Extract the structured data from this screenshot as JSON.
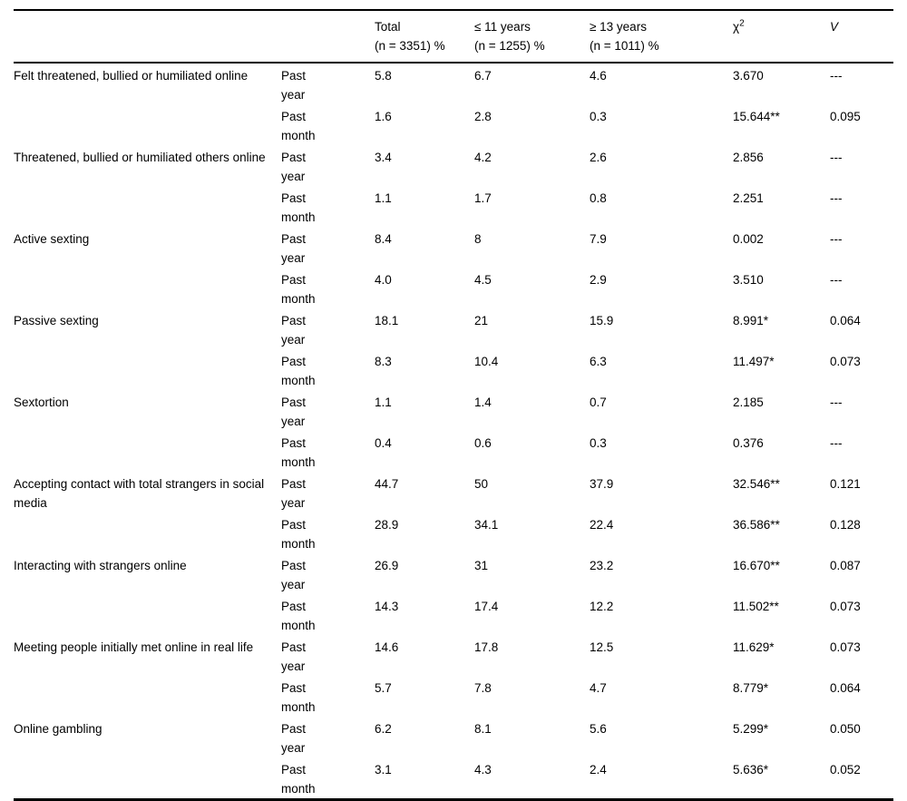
{
  "table": {
    "header": {
      "behavior": "",
      "period": "",
      "total": {
        "line1": "Total",
        "line2": "(n = 3351) %"
      },
      "le11": {
        "line1": "≤ 11 years",
        "line2": "(n = 1255) %"
      },
      "ge13": {
        "line1": "≥ 13 years",
        "line2": "(n = 1011) %"
      },
      "chi": {
        "symbol": "χ",
        "sup": "2"
      },
      "v": "V"
    },
    "rows": [
      {
        "behavior": "Felt threatened, bullied or humiliated online",
        "periods": [
          {
            "period": "Past year",
            "total": "5.8",
            "le11": "6.7",
            "ge13": "4.6",
            "chi": "3.670",
            "v": "---"
          },
          {
            "period": "Past month",
            "total": "1.6",
            "le11": "2.8",
            "ge13": "0.3",
            "chi": "15.644**",
            "v": "0.095"
          }
        ]
      },
      {
        "behavior": "Threatened, bullied or humiliated others online",
        "periods": [
          {
            "period": "Past year",
            "total": "3.4",
            "le11": "4.2",
            "ge13": "2.6",
            "chi": "2.856",
            "v": "---"
          },
          {
            "period": "Past month",
            "total": "1.1",
            "le11": "1.7",
            "ge13": "0.8",
            "chi": "2.251",
            "v": "---"
          }
        ]
      },
      {
        "behavior": "Active sexting",
        "periods": [
          {
            "period": "Past year",
            "total": "8.4",
            "le11": "8",
            "ge13": "7.9",
            "chi": "0.002",
            "v": "---"
          },
          {
            "period": "Past month",
            "total": "4.0",
            "le11": "4.5",
            "ge13": "2.9",
            "chi": "3.510",
            "v": "---"
          }
        ]
      },
      {
        "behavior": "Passive sexting",
        "periods": [
          {
            "period": "Past year",
            "total": "18.1",
            "le11": "21",
            "ge13": "15.9",
            "chi": "8.991*",
            "v": "0.064"
          },
          {
            "period": "Past month",
            "total": "8.3",
            "le11": "10.4",
            "ge13": "6.3",
            "chi": "11.497*",
            "v": "0.073"
          }
        ]
      },
      {
        "behavior": "Sextortion",
        "periods": [
          {
            "period": "Past year",
            "total": "1.1",
            "le11": "1.4",
            "ge13": "0.7",
            "chi": "2.185",
            "v": "---"
          },
          {
            "period": "Past month",
            "total": "0.4",
            "le11": "0.6",
            "ge13": "0.3",
            "chi": "0.376",
            "v": "---"
          }
        ]
      },
      {
        "behavior": "Accepting contact with total strangers in social media",
        "periods": [
          {
            "period": "Past year",
            "total": "44.7",
            "le11": "50",
            "ge13": "37.9",
            "chi": "32.546**",
            "v": "0.121"
          },
          {
            "period": "Past month",
            "total": "28.9",
            "le11": "34.1",
            "ge13": "22.4",
            "chi": "36.586**",
            "v": "0.128"
          }
        ]
      },
      {
        "behavior": "Interacting with strangers online",
        "periods": [
          {
            "period": "Past year",
            "total": "26.9",
            "le11": "31",
            "ge13": "23.2",
            "chi": "16.670**",
            "v": "0.087"
          },
          {
            "period": "Past month",
            "total": "14.3",
            "le11": "17.4",
            "ge13": "12.2",
            "chi": "11.502**",
            "v": "0.073"
          }
        ]
      },
      {
        "behavior": "Meeting people initially met online in real life",
        "periods": [
          {
            "period": "Past year",
            "total": "14.6",
            "le11": "17.8",
            "ge13": "12.5",
            "chi": "11.629*",
            "v": "0.073"
          },
          {
            "period": "Past month",
            "total": "5.7",
            "le11": "7.8",
            "ge13": "4.7",
            "chi": "8.779*",
            "v": "0.064"
          }
        ]
      },
      {
        "behavior": "Online gambling",
        "periods": [
          {
            "period": "Past year",
            "total": "6.2",
            "le11": "8.1",
            "ge13": "5.6",
            "chi": "5.299*",
            "v": "0.050"
          },
          {
            "period": "Past month",
            "total": "3.1",
            "le11": "4.3",
            "ge13": "2.4",
            "chi": "5.636*",
            "v": "0.052"
          }
        ]
      }
    ]
  }
}
